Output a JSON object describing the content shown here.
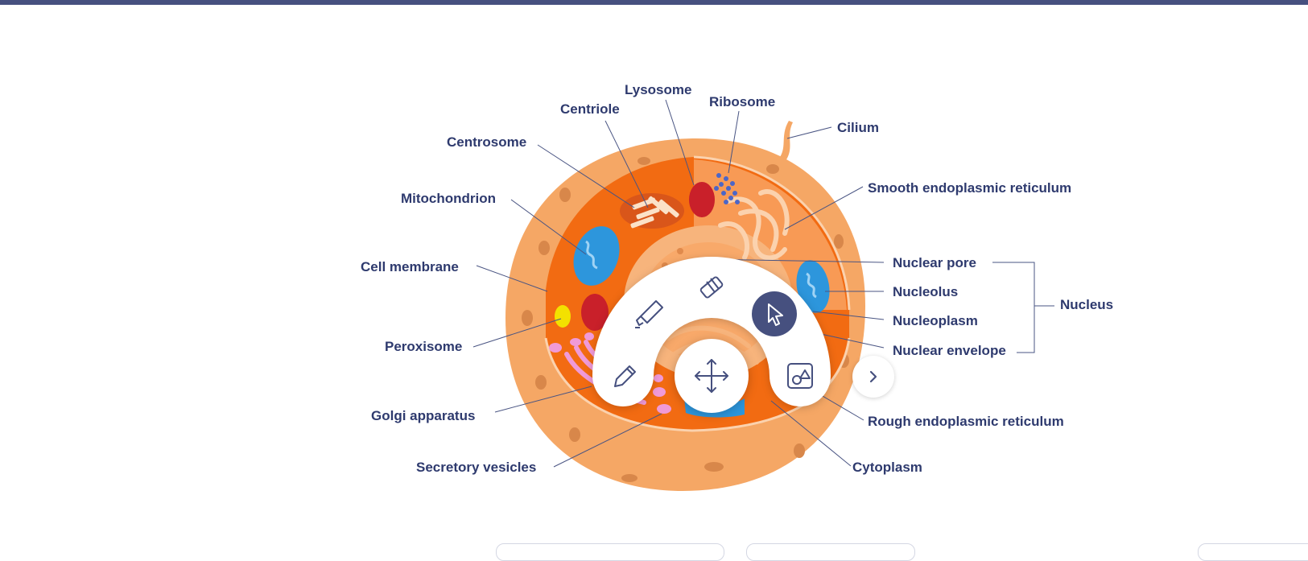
{
  "diagram": {
    "labels": {
      "lysosome": "Lysosome",
      "ribosome": "Ribosome",
      "centriole": "Centriole",
      "cilium": "Cilium",
      "centrosome": "Centrosome",
      "smooth_er": "Smooth endoplasmic reticulum",
      "mitochondrion": "Mitochondrion",
      "cell_membrane": "Cell membrane",
      "nuclear_pore": "Nuclear pore",
      "nucleolus": "Nucleolus",
      "nucleoplasm": "Nucleoplasm",
      "nuclear_envelope": "Nuclear envelope",
      "nucleus": "Nucleus",
      "peroxisome": "Peroxisome",
      "golgi": "Golgi apparatus",
      "rough_er": "Rough endoplasmic reticulum",
      "secretory_vesicles": "Secretory vesicles",
      "cytoplasm": "Cytoplasm"
    }
  },
  "toolbar": {
    "tools": [
      "highlighter",
      "eraser",
      "select",
      "pen",
      "move",
      "shapes"
    ],
    "active_tool": "select",
    "icons": {
      "highlighter": "highlighter-icon",
      "eraser": "eraser-icon",
      "select": "cursor-icon",
      "pen": "pencil-icon",
      "move": "move-icon",
      "shapes": "shapes-icon",
      "next": "chevron-right-icon"
    }
  },
  "colors": {
    "accent": "#46507f",
    "label_text": "#2e3a6e",
    "cell_outer": "#f5a765",
    "cytoplasm": "#f26b12",
    "mitochondrion": "#2d96dc",
    "lysosome": "#c9202a",
    "golgi": "#f09ad8"
  }
}
